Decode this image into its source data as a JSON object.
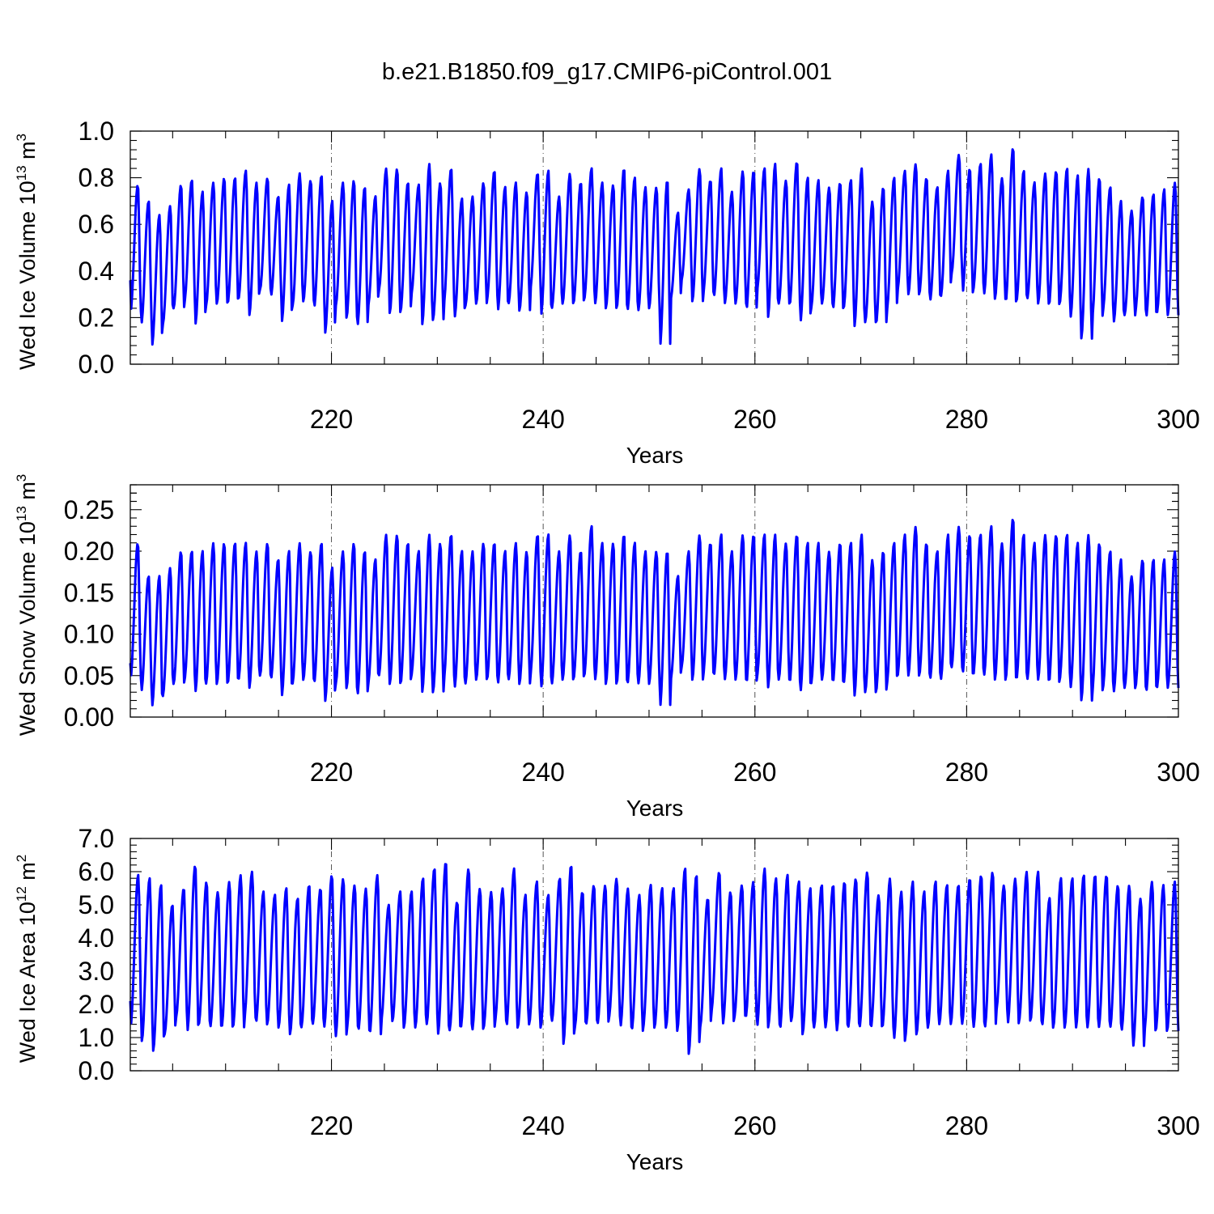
{
  "chart_data": {
    "title": "b.e21.B1850.f09_g17.CMIP6-piControl.001",
    "x_start": 201,
    "x_end": 300,
    "months_per_year": 12,
    "panels": [
      {
        "type": "line",
        "ylabel": "Wed Ice Volume 10",
        "ylabel_sup": "13",
        "ylabel_unit": " m",
        "ylabel_unit_sup": "3",
        "xlabel": "Years",
        "xlim": [
          201,
          300
        ],
        "ylim": [
          0.0,
          1.0
        ],
        "yticks": [
          "0.0",
          "0.2",
          "0.4",
          "0.6",
          "0.8",
          "1.0"
        ],
        "ytick_values": [
          0.0,
          0.2,
          0.4,
          0.6,
          0.8,
          1.0
        ],
        "xticks": [
          "220",
          "240",
          "260",
          "280",
          "300"
        ],
        "xtick_values": [
          220,
          240,
          260,
          280,
          300
        ],
        "color": "#0000ff",
        "start_value": 0.36,
        "annual_max": [
          0.77,
          0.7,
          0.64,
          0.68,
          0.77,
          0.79,
          0.74,
          0.78,
          0.8,
          0.8,
          0.83,
          0.78,
          0.8,
          0.72,
          0.77,
          0.82,
          0.79,
          0.81,
          0.7,
          0.78,
          0.79,
          0.76,
          0.72,
          0.84,
          0.84,
          0.78,
          0.77,
          0.86,
          0.78,
          0.84,
          0.71,
          0.72,
          0.78,
          0.83,
          0.76,
          0.78,
          0.74,
          0.82,
          0.83,
          0.72,
          0.82,
          0.78,
          0.84,
          0.78,
          0.77,
          0.84,
          0.8,
          0.76,
          0.76,
          0.79,
          0.65,
          0.75,
          0.84,
          0.79,
          0.84,
          0.74,
          0.83,
          0.83,
          0.84,
          0.86,
          0.79,
          0.87,
          0.8,
          0.79,
          0.76,
          0.78,
          0.79,
          0.84,
          0.7,
          0.76,
          0.8,
          0.83,
          0.86,
          0.8,
          0.76,
          0.83,
          0.9,
          0.84,
          0.86,
          0.9,
          0.8,
          0.93,
          0.83,
          0.78,
          0.82,
          0.83,
          0.84,
          0.81,
          0.84,
          0.8,
          0.76,
          0.7,
          0.66,
          0.72,
          0.73,
          0.75,
          0.78
        ],
        "annual_min": [
          0.22,
          0.17,
          0.08,
          0.17,
          0.24,
          0.27,
          0.17,
          0.25,
          0.26,
          0.26,
          0.28,
          0.21,
          0.32,
          0.29,
          0.18,
          0.25,
          0.27,
          0.24,
          0.13,
          0.25,
          0.2,
          0.16,
          0.25,
          0.32,
          0.22,
          0.23,
          0.3,
          0.17,
          0.19,
          0.26,
          0.2,
          0.25,
          0.26,
          0.28,
          0.23,
          0.26,
          0.23,
          0.32,
          0.21,
          0.24,
          0.26,
          0.26,
          0.28,
          0.26,
          0.24,
          0.24,
          0.23,
          0.23,
          0.24,
          0.07,
          0.28,
          0.36,
          0.27,
          0.3,
          0.29,
          0.26,
          0.26,
          0.23,
          0.32,
          0.2,
          0.26,
          0.25,
          0.18,
          0.24,
          0.26,
          0.23,
          0.24,
          0.16,
          0.18,
          0.17,
          0.23,
          0.32,
          0.3,
          0.3,
          0.27,
          0.29,
          0.39,
          0.3,
          0.32,
          0.3,
          0.28,
          0.26,
          0.27,
          0.28,
          0.26,
          0.25,
          0.26,
          0.2,
          0.11,
          0.2,
          0.23,
          0.18,
          0.21,
          0.23,
          0.2,
          0.22,
          0.21
        ]
      },
      {
        "type": "line",
        "ylabel": "Wed Snow Volume 10",
        "ylabel_sup": "13",
        "ylabel_unit": " m",
        "ylabel_unit_sup": "3",
        "xlabel": "Years",
        "xlim": [
          201,
          300
        ],
        "ylim": [
          0.0,
          0.28
        ],
        "yticks": [
          "0.00",
          "0.05",
          "0.10",
          "0.15",
          "0.20",
          "0.25"
        ],
        "ytick_values": [
          0.0,
          0.05,
          0.1,
          0.15,
          0.2,
          0.25
        ],
        "xticks": [
          "220",
          "240",
          "260",
          "280",
          "300"
        ],
        "xtick_values": [
          220,
          240,
          260,
          280,
          300
        ],
        "color": "#0000ff",
        "start_value": 0.065,
        "annual_max": [
          0.21,
          0.17,
          0.17,
          0.18,
          0.2,
          0.2,
          0.2,
          0.21,
          0.21,
          0.21,
          0.21,
          0.2,
          0.21,
          0.19,
          0.2,
          0.21,
          0.2,
          0.21,
          0.18,
          0.2,
          0.21,
          0.2,
          0.19,
          0.22,
          0.22,
          0.21,
          0.2,
          0.22,
          0.21,
          0.22,
          0.2,
          0.2,
          0.21,
          0.21,
          0.2,
          0.21,
          0.2,
          0.22,
          0.22,
          0.2,
          0.22,
          0.2,
          0.23,
          0.21,
          0.21,
          0.22,
          0.21,
          0.2,
          0.2,
          0.2,
          0.17,
          0.2,
          0.22,
          0.21,
          0.22,
          0.2,
          0.22,
          0.22,
          0.22,
          0.22,
          0.21,
          0.22,
          0.21,
          0.21,
          0.2,
          0.21,
          0.21,
          0.22,
          0.19,
          0.2,
          0.21,
          0.22,
          0.23,
          0.21,
          0.2,
          0.22,
          0.23,
          0.22,
          0.22,
          0.23,
          0.21,
          0.24,
          0.22,
          0.21,
          0.22,
          0.22,
          0.22,
          0.21,
          0.22,
          0.21,
          0.2,
          0.19,
          0.17,
          0.19,
          0.19,
          0.19,
          0.2
        ],
        "annual_min": [
          0.045,
          0.03,
          0.013,
          0.025,
          0.04,
          0.045,
          0.03,
          0.04,
          0.04,
          0.04,
          0.045,
          0.035,
          0.05,
          0.045,
          0.025,
          0.04,
          0.045,
          0.04,
          0.018,
          0.04,
          0.035,
          0.025,
          0.04,
          0.05,
          0.04,
          0.04,
          0.05,
          0.03,
          0.03,
          0.045,
          0.035,
          0.04,
          0.045,
          0.045,
          0.04,
          0.045,
          0.04,
          0.05,
          0.035,
          0.04,
          0.045,
          0.045,
          0.05,
          0.045,
          0.04,
          0.04,
          0.04,
          0.04,
          0.04,
          0.01,
          0.045,
          0.06,
          0.045,
          0.05,
          0.05,
          0.045,
          0.045,
          0.04,
          0.05,
          0.035,
          0.045,
          0.04,
          0.03,
          0.04,
          0.045,
          0.04,
          0.04,
          0.025,
          0.03,
          0.03,
          0.04,
          0.05,
          0.05,
          0.05,
          0.045,
          0.045,
          0.06,
          0.05,
          0.05,
          0.05,
          0.045,
          0.045,
          0.045,
          0.045,
          0.045,
          0.04,
          0.045,
          0.035,
          0.02,
          0.03,
          0.035,
          0.03,
          0.035,
          0.035,
          0.03,
          0.035,
          0.035
        ]
      },
      {
        "type": "line",
        "ylabel": "Wed Ice Area 10",
        "ylabel_sup": "12",
        "ylabel_unit": " m",
        "ylabel_unit_sup": "2",
        "xlabel": "Years",
        "xlim": [
          201,
          300
        ],
        "ylim": [
          0.0,
          7.0
        ],
        "yticks": [
          "0.0",
          "1.0",
          "2.0",
          "3.0",
          "4.0",
          "5.0",
          "6.0",
          "7.0"
        ],
        "ytick_values": [
          0,
          1,
          2,
          3,
          4,
          5,
          6,
          7
        ],
        "xticks": [
          "220",
          "240",
          "260",
          "280",
          "300"
        ],
        "xtick_values": [
          220,
          240,
          260,
          280,
          300
        ],
        "color": "#0000ff",
        "start_value": 2.1,
        "annual_max": [
          5.9,
          5.8,
          5.6,
          5.0,
          5.5,
          6.2,
          5.7,
          5.4,
          5.7,
          5.9,
          6.0,
          5.4,
          5.3,
          5.5,
          5.2,
          5.6,
          5.5,
          5.9,
          5.8,
          5.6,
          5.5,
          5.9,
          5.0,
          5.4,
          5.4,
          5.8,
          6.1,
          6.3,
          5.1,
          6.1,
          5.5,
          5.4,
          5.5,
          6.1,
          5.3,
          5.7,
          5.3,
          5.8,
          6.2,
          5.4,
          5.6,
          5.6,
          5.8,
          5.5,
          5.3,
          5.6,
          5.5,
          5.5,
          6.1,
          5.9,
          5.2,
          6.0,
          5.4,
          5.6,
          5.7,
          6.1,
          5.8,
          5.9,
          5.7,
          5.5,
          5.6,
          5.6,
          5.7,
          5.8,
          6.0,
          5.3,
          5.8,
          5.4,
          5.7,
          5.4,
          5.7,
          5.6,
          5.6,
          5.8,
          5.9,
          6.0,
          5.6,
          5.8,
          6.0,
          6.0,
          5.2,
          5.8,
          5.8,
          5.9,
          5.9,
          5.9,
          5.6,
          5.6,
          5.2,
          5.7,
          5.6,
          5.7
        ],
        "annual_min": [
          1.3,
          0.9,
          0.6,
          1.1,
          1.6,
          1.2,
          1.4,
          1.3,
          1.3,
          1.3,
          1.6,
          1.4,
          1.4,
          1.3,
          1.1,
          1.3,
          1.4,
          1.3,
          1.0,
          1.3,
          1.2,
          1.1,
          1.5,
          1.5,
          1.3,
          1.3,
          1.4,
          1.1,
          1.2,
          1.3,
          1.2,
          1.3,
          1.5,
          1.3,
          1.3,
          1.4,
          1.3,
          1.5,
          0.8,
          1.3,
          1.4,
          1.4,
          1.6,
          1.3,
          1.2,
          1.3,
          1.3,
          1.3,
          1.2,
          0.5,
          1.3,
          1.8,
          1.4,
          1.6,
          1.6,
          1.3,
          1.4,
          1.2,
          1.5,
          1.1,
          1.3,
          1.3,
          1.2,
          1.3,
          1.3,
          1.3,
          1.3,
          0.9,
          1.0,
          1.1,
          1.3,
          1.4,
          1.4,
          1.4,
          1.3,
          1.3,
          1.8,
          1.4,
          1.5,
          1.5,
          1.3,
          1.3,
          1.3,
          1.3,
          1.3,
          1.3,
          1.3,
          1.2,
          0.7,
          1.2,
          1.2,
          1.2,
          1.2,
          1.2,
          1.1,
          1.2,
          1.1
        ]
      }
    ]
  }
}
